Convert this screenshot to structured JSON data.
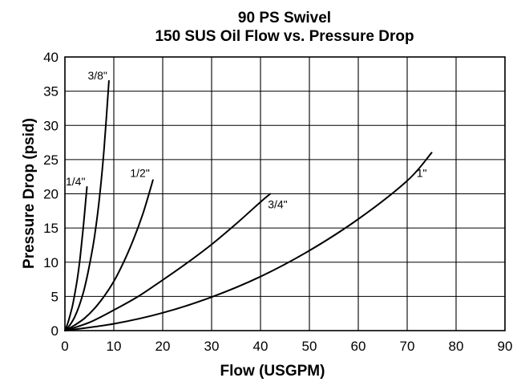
{
  "chart_data": {
    "type": "line",
    "title": "90 PS Swivel",
    "subtitle": "150 SUS Oil Flow vs. Pressure Drop",
    "xlabel": "Flow (USGPM)",
    "ylabel": "Pressure Drop (psid)",
    "xlim": [
      0,
      90
    ],
    "ylim": [
      0,
      40
    ],
    "xticks": [
      "0",
      "10",
      "20",
      "30",
      "40",
      "50",
      "60",
      "70",
      "80",
      "90"
    ],
    "yticks": [
      "0",
      "5",
      "10",
      "15",
      "20",
      "25",
      "30",
      "35",
      "40"
    ],
    "grid": true,
    "series": [
      {
        "name": "1/4\"",
        "x": [
          0,
          0.5,
          1,
          1.5,
          2,
          2.5,
          3,
          3.5,
          4,
          4.5
        ],
        "y": [
          0,
          0.9,
          2.1,
          3.5,
          5.3,
          7.4,
          10.0,
          13.3,
          17.0,
          21.0
        ]
      },
      {
        "name": "3/8\"",
        "x": [
          0,
          1,
          2,
          3,
          4,
          5,
          6,
          7,
          8,
          9
        ],
        "y": [
          0,
          0.8,
          2.0,
          3.8,
          6.2,
          9.5,
          13.5,
          19.0,
          26.5,
          36.5
        ]
      },
      {
        "name": "1/2\"",
        "x": [
          0,
          2,
          4,
          6,
          8,
          10,
          12,
          14,
          16,
          18
        ],
        "y": [
          0,
          0.8,
          1.8,
          3.2,
          5.0,
          7.2,
          10.0,
          13.3,
          17.2,
          22.0
        ]
      },
      {
        "name": "3/4\"",
        "x": [
          0,
          5,
          10,
          15,
          20,
          25,
          30,
          35,
          40,
          42
        ],
        "y": [
          0,
          1.2,
          3.0,
          5.0,
          7.4,
          9.9,
          12.6,
          15.6,
          18.8,
          20.0
        ]
      },
      {
        "name": "1\"",
        "x": [
          0,
          10,
          20,
          30,
          40,
          50,
          60,
          70,
          75
        ],
        "y": [
          0,
          1.0,
          2.6,
          4.9,
          7.9,
          11.7,
          16.3,
          21.9,
          26.0
        ]
      }
    ],
    "annotations": [
      {
        "text": "3/8\"",
        "series": "3/8\""
      },
      {
        "text": "1/4\"",
        "series": "1/4\""
      },
      {
        "text": "1/2\"",
        "series": "1/2\""
      },
      {
        "text": "3/4\"",
        "series": "3/4\""
      },
      {
        "text": "1\"",
        "series": "1\""
      }
    ]
  }
}
